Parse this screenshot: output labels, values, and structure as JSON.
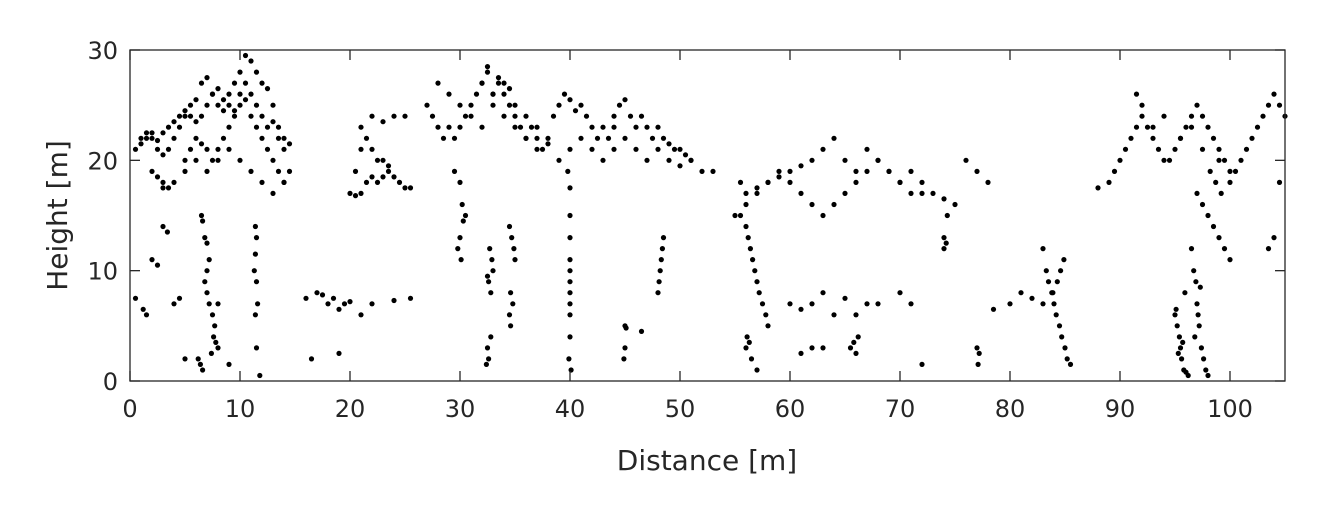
{
  "chart_data": {
    "type": "scatter",
    "title": "",
    "xlabel": "Distance [m]",
    "ylabel": "Height [m]",
    "xlim": [
      0,
      105
    ],
    "ylim": [
      0,
      30
    ],
    "xticks": [
      0,
      10,
      20,
      30,
      40,
      50,
      60,
      70,
      80,
      90,
      100
    ],
    "yticks": [
      0,
      10,
      20,
      30
    ],
    "grid": false,
    "legend": "none",
    "marker_color": "#000000",
    "series": [
      {
        "x": [
          0.5,
          1,
          1.5,
          2,
          2.5,
          3,
          3.5,
          4,
          4.5,
          5,
          5.5,
          6,
          6.5,
          7,
          7.5,
          8,
          8.5,
          9,
          9.5,
          10,
          10.5,
          11,
          11.5,
          12,
          12.5,
          13,
          13.5,
          14,
          14.5,
          1,
          1.5,
          2,
          2.5,
          3,
          3.5,
          4,
          4.5,
          5,
          5.5,
          6,
          6.5,
          7,
          7.5,
          8,
          8.5,
          9,
          9.5,
          10,
          10.5,
          11,
          11.5,
          12,
          12.5,
          13,
          13.5,
          14,
          2,
          2.5,
          3,
          3.5,
          5,
          5.5,
          6,
          6.5,
          7,
          7.5,
          8,
          8.5,
          9,
          9.5,
          10,
          10.5,
          11,
          11.5,
          12,
          12.5,
          13,
          13.5,
          14,
          14.5,
          3,
          4,
          5,
          6,
          7,
          8,
          9,
          10,
          11,
          12,
          13,
          14,
          6.5,
          6.6,
          6.8,
          7,
          7.2,
          7,
          6.8,
          7,
          7.2,
          7.5,
          7.7,
          7.6,
          7.8,
          8,
          6.2,
          6.4,
          6.6,
          7.4,
          11.4,
          11.5,
          11.4,
          11.3,
          11.5,
          11.6,
          11.4,
          11.5,
          11.8,
          0.5,
          1.2,
          1.5,
          2,
          2.5,
          3,
          3.4,
          4,
          4.5,
          5,
          8,
          9,
          20,
          20.5,
          21,
          21.5,
          22,
          22.5,
          23,
          23.5,
          24,
          24.5,
          25,
          25.5,
          20.5,
          21,
          21.5,
          22,
          22.5,
          23,
          23.5,
          21,
          22,
          23,
          24,
          25,
          27,
          27.5,
          28,
          28.5,
          29,
          29.5,
          30,
          30.5,
          31,
          31.5,
          32,
          28,
          29,
          30,
          31,
          32,
          33,
          34,
          35,
          36,
          37,
          38,
          32,
          32.5,
          33,
          33.5,
          34,
          34.5,
          35,
          35.5,
          36,
          36.5,
          37,
          37.5,
          38,
          33,
          34,
          35,
          36,
          37,
          32.5,
          33.5,
          34.5,
          38.5,
          39,
          39.5,
          40,
          40.5,
          41,
          41.5,
          42,
          42.5,
          43,
          43.5,
          44,
          39,
          40,
          41,
          42,
          43,
          44,
          44,
          44.5,
          45,
          45.5,
          46,
          46.5,
          47,
          47.5,
          48,
          48.5,
          49,
          49.5,
          50,
          50.5,
          51,
          45,
          46,
          47,
          48,
          49,
          50,
          51,
          52,
          53,
          29.5,
          30,
          30.2,
          30.5,
          30.3,
          30,
          29.8,
          30.1,
          32.5,
          32.6,
          32.8,
          32.7,
          32.9,
          33,
          32.5,
          32.6,
          32.4,
          32.8,
          34.5,
          34.7,
          34.9,
          35,
          34.6,
          34.8,
          34.5,
          34.6,
          39.8,
          40,
          40,
          40,
          40,
          40,
          40,
          40,
          40,
          40,
          40,
          39.9,
          40.1,
          48.5,
          48.4,
          48.3,
          48.2,
          48.1,
          48,
          45,
          45.1,
          45,
          44.9,
          46.5,
          16,
          17,
          17.5,
          18,
          18.5,
          19,
          19.5,
          20,
          21,
          22,
          24,
          25.5,
          16.5,
          19,
          55,
          55.5,
          56,
          56.2,
          56.4,
          56.6,
          56.8,
          57,
          57.2,
          57.5,
          57.8,
          58,
          56,
          56.5,
          57,
          56.1,
          56.3,
          55.5,
          56,
          57,
          58,
          59,
          60,
          61,
          62,
          63,
          64,
          65,
          66,
          67,
          68,
          69,
          70,
          71,
          72,
          73,
          74,
          75,
          76,
          77,
          78,
          56,
          57,
          58,
          59,
          60,
          61,
          62,
          63,
          64,
          65,
          66,
          67,
          68,
          69,
          70,
          71,
          72,
          60,
          61,
          62,
          63,
          64,
          65,
          66,
          67,
          68,
          65.5,
          66,
          65.8,
          66.2,
          61,
          62,
          63,
          70,
          71,
          72,
          74,
          74.2,
          74,
          74.3,
          77,
          77.2,
          77.1,
          78.5,
          80,
          81,
          82,
          83,
          83,
          83.3,
          83.5,
          83.8,
          84,
          84.2,
          84.5,
          84.7,
          85,
          85.2,
          85.5,
          84.9,
          84.6,
          84.3,
          83.9,
          88,
          89,
          89.5,
          90,
          90.5,
          91,
          91.5,
          92,
          92.5,
          93,
          93.5,
          94,
          94.5,
          95,
          95.5,
          96,
          96.5,
          97,
          97.5,
          98,
          98.5,
          99,
          99.5,
          100,
          95,
          95.2,
          95.4,
          95.5,
          95.6,
          95.8,
          96,
          96.2,
          95.3,
          95.7,
          95.1,
          95.9,
          96.5,
          96.7,
          96.9,
          97,
          97.2,
          97.4,
          97.6,
          97.8,
          98,
          97.1,
          96.8,
          97.3,
          97,
          97.5,
          98,
          98.5,
          99,
          99.5,
          100,
          98.2,
          98.7,
          99.2,
          100,
          100.5,
          101,
          101.5,
          102,
          102.5,
          103,
          103.5,
          104,
          104.5,
          105,
          103.5,
          104,
          104.5,
          93,
          94,
          92,
          91.5,
          95.5,
          96.5,
          97.5,
          99
        ],
        "y": [
          21,
          22,
          22.5,
          22,
          21.8,
          22.5,
          23,
          23.5,
          24,
          24.5,
          25,
          25.5,
          27,
          27.5,
          26,
          25,
          24.5,
          26,
          27,
          28,
          29.5,
          29,
          28,
          27,
          26.5,
          25,
          23,
          22,
          21.5,
          21.5,
          22,
          22.5,
          21,
          20.5,
          21,
          22,
          23,
          24,
          24,
          23.5,
          24,
          25,
          26,
          26.5,
          25.5,
          25,
          24.5,
          26,
          27,
          26,
          25,
          24,
          23,
          23.5,
          22,
          21,
          19,
          18.5,
          18,
          17.5,
          20,
          21,
          22,
          21.5,
          21,
          20,
          21,
          22,
          23,
          24,
          25,
          25.5,
          24,
          23,
          22,
          21,
          20,
          19,
          18,
          19,
          17.5,
          18,
          19,
          20,
          19,
          20,
          21,
          20,
          19,
          18,
          17,
          18,
          15,
          14.5,
          13,
          12.5,
          11,
          10,
          9,
          8,
          7,
          6,
          5,
          4,
          3.5,
          3,
          2,
          1.5,
          1,
          2.5,
          14,
          13,
          11.5,
          10,
          9,
          7,
          6,
          3,
          0.5,
          7.5,
          6.5,
          6,
          11,
          10.5,
          14,
          13.5,
          7,
          7.5,
          2,
          7,
          1.5,
          17,
          16.8,
          17,
          18,
          18.5,
          18,
          18.5,
          19,
          18.5,
          18,
          17.5,
          17.5,
          19,
          21,
          22,
          21,
          20,
          20,
          19.5,
          23,
          24,
          23.5,
          24,
          24,
          25,
          24,
          23,
          22,
          23,
          22,
          23,
          24,
          25,
          26,
          27,
          27,
          26,
          25,
          24,
          23,
          26,
          27,
          25,
          24,
          23,
          22,
          27,
          28,
          26,
          27,
          26,
          25,
          24,
          23,
          22,
          23,
          22,
          21,
          21.5,
          25,
          24,
          23,
          22,
          21,
          28.5,
          27.5,
          26.5,
          24,
          25,
          26,
          25.5,
          24.5,
          25,
          24,
          23,
          22,
          23,
          22,
          23,
          20,
          21,
          22,
          21,
          20,
          21,
          24,
          25,
          25.5,
          24,
          23,
          24,
          23,
          22,
          23,
          22,
          21.5,
          21,
          21,
          20.5,
          20,
          22,
          21,
          20,
          21,
          20,
          19.5,
          20,
          19,
          19,
          19,
          18,
          16,
          15,
          14.5,
          13,
          12,
          11,
          9.5,
          9,
          8,
          12,
          11,
          10,
          3,
          2,
          1.5,
          4,
          14,
          13,
          12,
          11,
          8,
          7,
          6,
          5,
          19,
          17.5,
          15,
          13,
          11,
          10,
          9,
          8,
          7,
          6,
          4,
          2,
          1,
          13,
          12,
          11,
          10,
          9,
          8,
          5,
          4.8,
          3,
          2,
          4.5,
          7.5,
          8,
          7.8,
          7,
          7.5,
          6.5,
          7,
          7.2,
          6,
          7,
          7.3,
          7.5,
          2,
          2.5,
          15,
          15,
          14,
          13,
          12,
          11,
          10,
          9,
          8,
          7,
          6,
          5,
          3,
          2,
          1,
          4,
          3.5,
          18,
          17,
          17.5,
          18,
          18.5,
          19,
          19.5,
          20,
          21,
          22,
          20,
          19,
          21,
          20,
          19,
          18,
          19,
          18,
          17,
          16.5,
          16,
          20,
          19,
          18,
          16,
          17,
          18,
          19,
          18,
          17,
          16,
          15,
          16,
          17,
          18,
          19,
          20,
          19,
          18,
          17,
          17,
          7,
          6.5,
          7,
          8,
          6,
          7.5,
          6,
          7,
          7,
          3,
          2.5,
          3.5,
          4,
          2.5,
          3,
          3,
          8,
          7,
          1.5,
          13,
          12.5,
          12,
          15,
          3,
          2.5,
          1.5,
          6.5,
          7,
          8,
          7.5,
          7,
          12,
          10,
          9,
          8,
          7,
          6,
          5,
          4,
          3,
          2,
          1.5,
          11,
          10,
          9,
          8,
          17.5,
          18,
          19,
          20,
          21,
          22,
          23,
          24,
          23,
          22,
          21,
          20,
          20,
          21,
          22,
          23,
          24,
          25,
          24,
          23,
          22,
          21,
          20,
          19,
          6,
          5,
          4,
          3,
          2,
          1,
          0.8,
          0.5,
          2.5,
          3.5,
          6.5,
          8,
          12,
          10,
          9,
          7,
          5,
          3,
          2,
          1,
          0.5,
          6,
          4,
          8.5,
          17,
          16,
          15,
          14,
          13,
          12,
          11,
          19,
          18,
          17,
          18,
          19,
          20,
          21,
          22,
          23,
          24,
          25,
          26,
          25,
          24,
          12,
          13,
          18,
          23,
          24,
          25,
          26,
          22,
          23,
          21,
          20
        ]
      }
    ]
  }
}
